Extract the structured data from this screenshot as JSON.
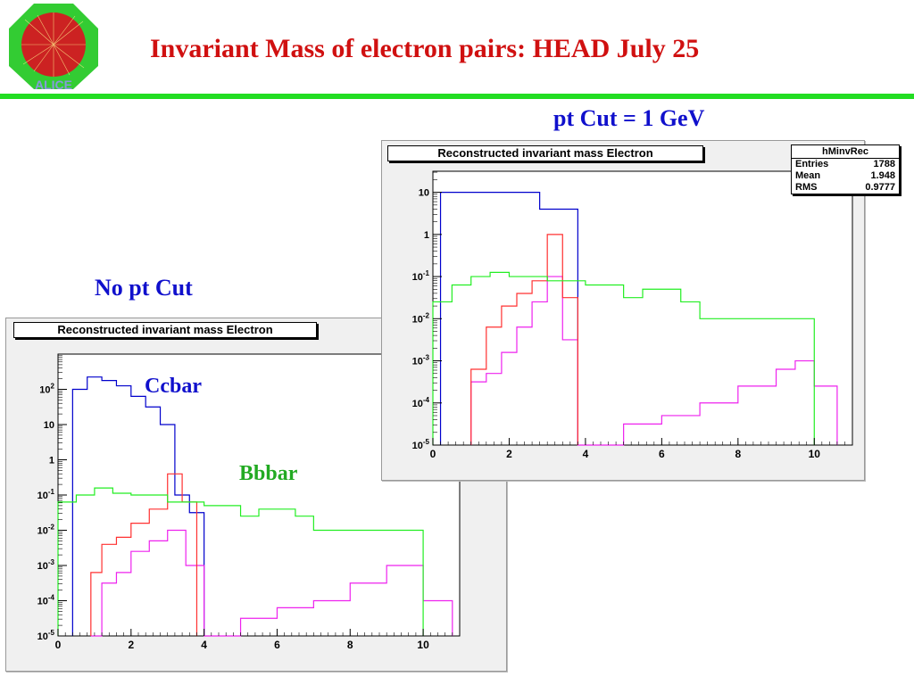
{
  "slide": {
    "title": "Invariant Mass of electron pairs: HEAD July 25",
    "logo_text": "ALICE"
  },
  "labels": {
    "pt_cut": "pt Cut = 1 GeV",
    "no_pt_cut": "No pt Cut",
    "ccbar": "Ccbar",
    "bbbar": "Bbbar"
  },
  "colors": {
    "title": "#d01010",
    "labels": "#1010cc",
    "bbbar_label": "#22aa22",
    "rule": "#22dd22",
    "blue_series": "#0000cc",
    "red_series": "#ff3030",
    "green_series": "#22ee22",
    "magenta_series": "#ee22ee",
    "black_series": "#000000"
  },
  "stats_box": {
    "name": "hMinvRec",
    "rows": [
      {
        "label": "Entries",
        "value": "1788"
      },
      {
        "label": "Mean",
        "value": "1.948"
      },
      {
        "label": "RMS",
        "value": "0.9777"
      }
    ]
  },
  "chart_data": [
    {
      "id": "no_cut",
      "type": "line",
      "title": "Reconstructed invariant mass Electron",
      "xlim": [
        0,
        11
      ],
      "ylim_log10": [
        -5,
        3
      ],
      "x_ticks": [
        0,
        2,
        4,
        6,
        8,
        10
      ],
      "y_ticks": [
        {
          "exp": -5,
          "label": "10-5"
        },
        {
          "exp": -4,
          "label": "10-4"
        },
        {
          "exp": -3,
          "label": "10-3"
        },
        {
          "exp": -2,
          "label": "10-2"
        },
        {
          "exp": -1,
          "label": "10-1"
        },
        {
          "exp": 0,
          "label": "1"
        },
        {
          "exp": 1,
          "label": "10"
        },
        {
          "exp": 2,
          "label": "102"
        }
      ],
      "series": [
        {
          "color": "#0000cc",
          "points": [
            [
              0.4,
              2.0
            ],
            [
              0.8,
              2.35
            ],
            [
              1.2,
              2.25
            ],
            [
              1.6,
              2.1
            ],
            [
              2.0,
              1.8
            ],
            [
              2.4,
              1.5
            ],
            [
              2.8,
              1.0
            ],
            [
              3.2,
              -1.0
            ],
            [
              3.6,
              -1.5
            ],
            [
              4.0,
              -5.0
            ]
          ]
        },
        {
          "color": "#ee22ee",
          "points": [
            [
              0.9,
              -5.0
            ],
            [
              1.2,
              -3.5
            ],
            [
              1.6,
              -3.2
            ],
            [
              2.0,
              -2.6
            ],
            [
              2.5,
              -2.3
            ],
            [
              3.0,
              -2.0
            ],
            [
              3.5,
              -3.0
            ],
            [
              4.0,
              -5.0
            ],
            [
              5.0,
              -4.5
            ],
            [
              6.0,
              -4.2
            ],
            [
              7.0,
              -4.0
            ],
            [
              8.0,
              -3.5
            ],
            [
              9.0,
              -3.0
            ],
            [
              9.5,
              -3.0
            ],
            [
              10.0,
              -4.0
            ],
            [
              10.8,
              -5.0
            ]
          ]
        },
        {
          "color": "#ff3030",
          "points": [
            [
              0.9,
              -3.2
            ],
            [
              1.2,
              -2.4
            ],
            [
              1.6,
              -2.2
            ],
            [
              2.0,
              -1.8
            ],
            [
              2.5,
              -1.4
            ],
            [
              3.0,
              -0.4
            ],
            [
              3.4,
              -1.2
            ],
            [
              3.8,
              -5.0
            ]
          ]
        },
        {
          "color": "#22ee22",
          "points": [
            [
              0.0,
              -1.2
            ],
            [
              0.5,
              -1.0
            ],
            [
              1.0,
              -0.8
            ],
            [
              1.5,
              -0.95
            ],
            [
              2.0,
              -1.0
            ],
            [
              3.0,
              -1.2
            ],
            [
              4.0,
              -1.3
            ],
            [
              5.0,
              -1.6
            ],
            [
              5.5,
              -1.4
            ],
            [
              6.5,
              -1.6
            ],
            [
              7.0,
              -2.0
            ],
            [
              8.0,
              -2.0
            ],
            [
              9.0,
              -2.0
            ],
            [
              9.8,
              -2.0
            ],
            [
              10.0,
              -5.0
            ]
          ]
        }
      ]
    },
    {
      "id": "pt_cut",
      "type": "line",
      "title": "Reconstructed invariant mass Electron",
      "xlim": [
        0,
        11
      ],
      "ylim_log10": [
        -5,
        1.5
      ],
      "x_ticks": [
        0,
        2,
        4,
        6,
        8,
        10
      ],
      "y_ticks": [
        {
          "exp": -5,
          "label": "10-5"
        },
        {
          "exp": -4,
          "label": "10-4"
        },
        {
          "exp": -3,
          "label": "10-3"
        },
        {
          "exp": -2,
          "label": "10-2"
        },
        {
          "exp": -1,
          "label": "10-1"
        },
        {
          "exp": 0,
          "label": "1"
        },
        {
          "exp": 1,
          "label": "10"
        }
      ],
      "series": [
        {
          "color": "#0000cc",
          "points": [
            [
              0.2,
              1.0
            ],
            [
              0.6,
              1.0
            ],
            [
              1.0,
              1.0
            ],
            [
              1.5,
              1.0
            ],
            [
              2.0,
              1.0
            ],
            [
              2.4,
              1.0
            ],
            [
              2.8,
              0.6
            ],
            [
              3.2,
              0.6
            ],
            [
              3.6,
              0.6
            ],
            [
              3.8,
              -5.0
            ]
          ]
        },
        {
          "color": "#ee22ee",
          "points": [
            [
              1.0,
              -3.5
            ],
            [
              1.4,
              -3.3
            ],
            [
              1.8,
              -2.8
            ],
            [
              2.2,
              -2.2
            ],
            [
              2.6,
              -1.6
            ],
            [
              3.0,
              -1.0
            ],
            [
              3.4,
              -2.5
            ],
            [
              3.8,
              -5.0
            ],
            [
              5.0,
              -4.5
            ],
            [
              6.0,
              -4.3
            ],
            [
              7.0,
              -4.0
            ],
            [
              8.0,
              -3.6
            ],
            [
              9.0,
              -3.2
            ],
            [
              9.5,
              -3.0
            ],
            [
              10.0,
              -3.6
            ],
            [
              10.6,
              -5.0
            ]
          ]
        },
        {
          "color": "#ff3030",
          "points": [
            [
              1.0,
              -3.2
            ],
            [
              1.4,
              -2.2
            ],
            [
              1.8,
              -1.7
            ],
            [
              2.2,
              -1.4
            ],
            [
              2.6,
              -1.1
            ],
            [
              3.0,
              0.0
            ],
            [
              3.4,
              -1.5
            ],
            [
              3.8,
              -5.0
            ]
          ]
        },
        {
          "color": "#22ee22",
          "points": [
            [
              0.0,
              -1.6
            ],
            [
              0.5,
              -1.2
            ],
            [
              1.0,
              -1.0
            ],
            [
              1.5,
              -0.9
            ],
            [
              2.0,
              -1.0
            ],
            [
              3.0,
              -1.1
            ],
            [
              4.0,
              -1.2
            ],
            [
              5.0,
              -1.5
            ],
            [
              5.5,
              -1.3
            ],
            [
              6.5,
              -1.6
            ],
            [
              7.0,
              -2.0
            ],
            [
              8.0,
              -2.0
            ],
            [
              9.0,
              -2.0
            ],
            [
              9.8,
              -2.0
            ],
            [
              10.0,
              -5.0
            ]
          ]
        }
      ]
    }
  ]
}
